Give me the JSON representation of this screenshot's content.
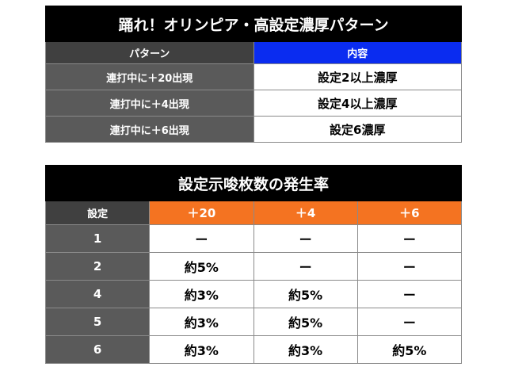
{
  "table1": {
    "title": "踊れ！オリンピア・高設定濃厚パターン",
    "headers": [
      "パターン",
      "内容"
    ],
    "rows": [
      {
        "pattern": "連打中に＋20出現",
        "content": "設定2以上濃厚"
      },
      {
        "pattern": "連打中に＋4出現",
        "content": "設定4以上濃厚"
      },
      {
        "pattern": "連打中に＋6出現",
        "content": "設定6濃厚"
      }
    ]
  },
  "table2": {
    "title": "設定示唆枚数の発生率",
    "corner": "設定",
    "columns": [
      "＋20",
      "＋4",
      "＋6"
    ],
    "rows": [
      {
        "setting": "1",
        "values": [
          "ー",
          "ー",
          "ー"
        ]
      },
      {
        "setting": "2",
        "values": [
          "約5%",
          "ー",
          "ー"
        ]
      },
      {
        "setting": "4",
        "values": [
          "約3%",
          "約5%",
          "ー"
        ]
      },
      {
        "setting": "5",
        "values": [
          "約3%",
          "約5%",
          "ー"
        ]
      },
      {
        "setting": "6",
        "values": [
          "約3%",
          "約3%",
          "約5%"
        ]
      }
    ]
  }
}
